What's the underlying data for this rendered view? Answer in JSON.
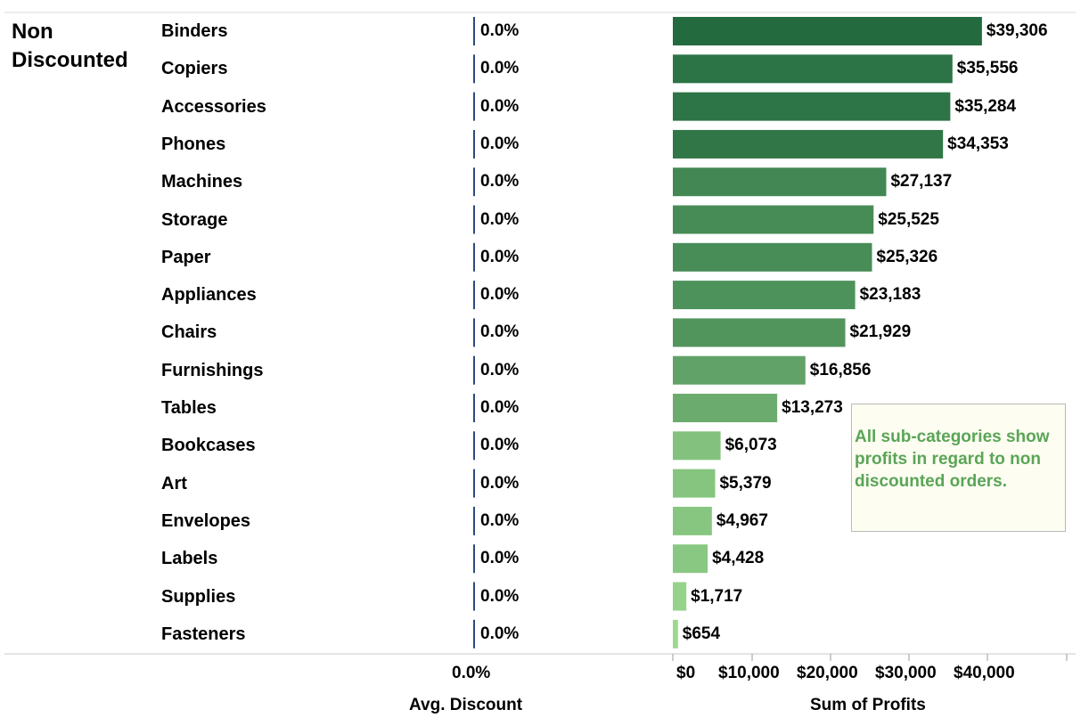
{
  "chart_data": {
    "type": "bar",
    "group": "Non Discounted",
    "categories": [
      "Binders",
      "Copiers",
      "Accessories",
      "Phones",
      "Machines",
      "Storage",
      "Paper",
      "Appliances",
      "Chairs",
      "Furnishings",
      "Tables",
      "Bookcases",
      "Art",
      "Envelopes",
      "Labels",
      "Supplies",
      "Fasteners"
    ],
    "series": [
      {
        "name": "Avg. Discount",
        "values": [
          0,
          0,
          0,
          0,
          0,
          0,
          0,
          0,
          0,
          0,
          0,
          0,
          0,
          0,
          0,
          0,
          0
        ],
        "labels": [
          "0.0%",
          "0.0%",
          "0.0%",
          "0.0%",
          "0.0%",
          "0.0%",
          "0.0%",
          "0.0%",
          "0.0%",
          "0.0%",
          "0.0%",
          "0.0%",
          "0.0%",
          "0.0%",
          "0.0%",
          "0.0%",
          "0.0%"
        ]
      },
      {
        "name": "Sum of Profits",
        "values": [
          39306,
          35556,
          35284,
          34353,
          27137,
          25525,
          25326,
          23183,
          21929,
          16856,
          13273,
          6073,
          5379,
          4967,
          4428,
          1717,
          654
        ],
        "labels": [
          "$39,306",
          "$35,556",
          "$35,284",
          "$34,353",
          "$27,137",
          "$25,525",
          "$25,326",
          "$23,183",
          "$21,929",
          "$16,856",
          "$13,273",
          "$6,073",
          "$5,379",
          "$4,967",
          "$4,428",
          "$1,717",
          "$654"
        ]
      }
    ],
    "discount_axis": {
      "title": "Avg. Discount",
      "ticks": [
        "0.0%"
      ]
    },
    "profit_axis": {
      "title": "Sum of Profits",
      "range": [
        0,
        50000
      ],
      "tick_values": [
        0,
        10000,
        20000,
        30000,
        40000
      ],
      "ticks": [
        "$0",
        "$10,000",
        "$20,000",
        "$30,000",
        "$40,000"
      ]
    },
    "color_scale": {
      "low": "#9cd98e",
      "high": "#236b3f"
    },
    "annotation": "All sub-categories show profits in regard to non discounted orders."
  }
}
